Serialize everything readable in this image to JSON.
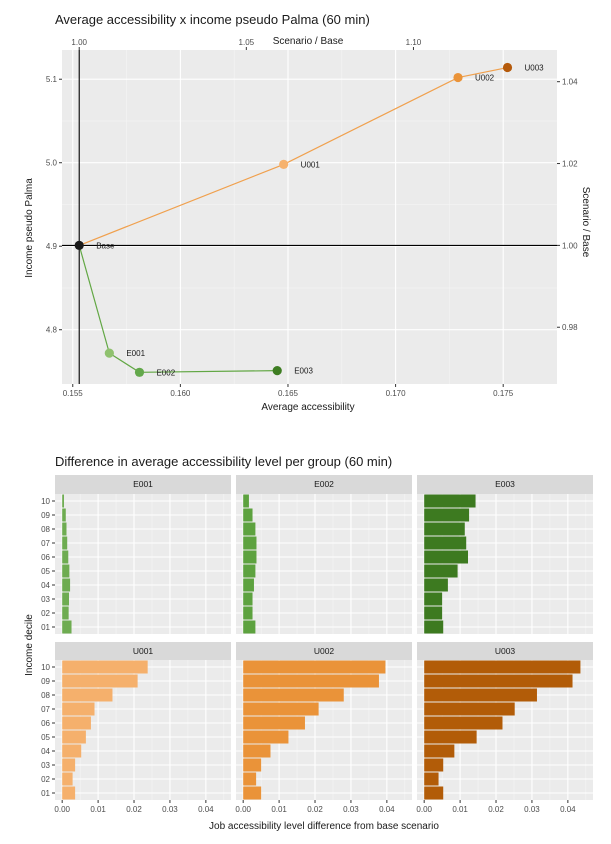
{
  "chart_data": [
    {
      "type": "scatter",
      "title": "Average accessibility x income pseudo Palma (60 min)",
      "xlabel": "Average accessibility",
      "ylabel": "Income pseudo Palma",
      "x2label": "Scenario / Base",
      "y2label": "Scenario / Base",
      "xlim": [
        0.1545,
        0.1775
      ],
      "ylim": [
        4.735,
        5.135
      ],
      "xticks": [
        0.155,
        0.16,
        0.165,
        0.17,
        0.175
      ],
      "xtick_labels": [
        "0.155",
        "0.160",
        "0.165",
        "0.170",
        "0.175"
      ],
      "yticks": [
        4.8,
        4.9,
        5.0,
        5.1
      ],
      "ytick_labels": [
        "4.8",
        "4.9",
        "5.0",
        "5.1"
      ],
      "x2ticks": [
        1.0,
        1.05,
        1.1
      ],
      "x2tick_labels": [
        "1.00",
        "1.05",
        "1.10"
      ],
      "y2ticks": [
        0.98,
        1.0,
        1.02,
        1.04
      ],
      "y2tick_labels": [
        "0.98",
        "1.00",
        "1.02",
        "1.04"
      ],
      "base": {
        "x": 0.1553,
        "y": 4.901
      },
      "points": [
        {
          "label": "Base",
          "x": 0.1553,
          "y": 4.901,
          "color": "#1a1a1a"
        },
        {
          "label": "E001",
          "x": 0.1567,
          "y": 4.772,
          "color": "#8fc16e"
        },
        {
          "label": "E002",
          "x": 0.1581,
          "y": 4.749,
          "color": "#63a84b"
        },
        {
          "label": "E003",
          "x": 0.1645,
          "y": 4.751,
          "color": "#3e7d22"
        },
        {
          "label": "U001",
          "x": 0.1648,
          "y": 4.998,
          "color": "#f6b26e"
        },
        {
          "label": "U002",
          "x": 0.1729,
          "y": 5.102,
          "color": "#ea9339"
        },
        {
          "label": "U003",
          "x": 0.1752,
          "y": 5.114,
          "color": "#b55a0b"
        }
      ],
      "lines": [
        {
          "color": "#62a744",
          "points": [
            "Base",
            "E001",
            "E002",
            "E003"
          ]
        },
        {
          "color": "#f0a04d",
          "points": [
            "Base",
            "U001",
            "U002",
            "U003"
          ]
        }
      ],
      "grid": true
    },
    {
      "type": "bar",
      "orientation": "horizontal",
      "title": "Difference in average accessibility level per group (60 min)",
      "xlabel": "Job accessibility level difference from base scenario",
      "ylabel": "Income decile",
      "categories": [
        "01",
        "02",
        "03",
        "04",
        "05",
        "06",
        "07",
        "08",
        "09",
        "10"
      ],
      "xlim": [
        -0.002,
        0.047
      ],
      "xticks": [
        0.0,
        0.01,
        0.02,
        0.03,
        0.04
      ],
      "xtick_labels": [
        "0.00",
        "0.01",
        "0.02",
        "0.03",
        "0.04"
      ],
      "grid": true,
      "panels": [
        {
          "name": "E001",
          "color": "#6eac51",
          "values": [
            0.0026,
            0.0018,
            0.0019,
            0.0022,
            0.002,
            0.0017,
            0.0014,
            0.0012,
            0.001,
            0.0005
          ]
        },
        {
          "name": "E002",
          "color": "#5da23f",
          "values": [
            0.0034,
            0.0026,
            0.0026,
            0.003,
            0.0034,
            0.0037,
            0.0037,
            0.0034,
            0.0026,
            0.0016
          ]
        },
        {
          "name": "E003",
          "color": "#3d7a20",
          "values": [
            0.0053,
            0.005,
            0.005,
            0.0066,
            0.0093,
            0.0122,
            0.0117,
            0.0113,
            0.0125,
            0.0143
          ]
        },
        {
          "name": "U001",
          "color": "#f5b06c",
          "values": [
            0.0036,
            0.0029,
            0.0036,
            0.0053,
            0.0066,
            0.008,
            0.009,
            0.014,
            0.021,
            0.0238
          ]
        },
        {
          "name": "U002",
          "color": "#ea9339",
          "values": [
            0.005,
            0.0036,
            0.005,
            0.0076,
            0.0126,
            0.0172,
            0.021,
            0.028,
            0.0378,
            0.0396
          ]
        },
        {
          "name": "U003",
          "color": "#b25c08",
          "values": [
            0.0053,
            0.004,
            0.0053,
            0.0084,
            0.0146,
            0.0218,
            0.0252,
            0.0314,
            0.0413,
            0.0435
          ]
        }
      ]
    }
  ]
}
